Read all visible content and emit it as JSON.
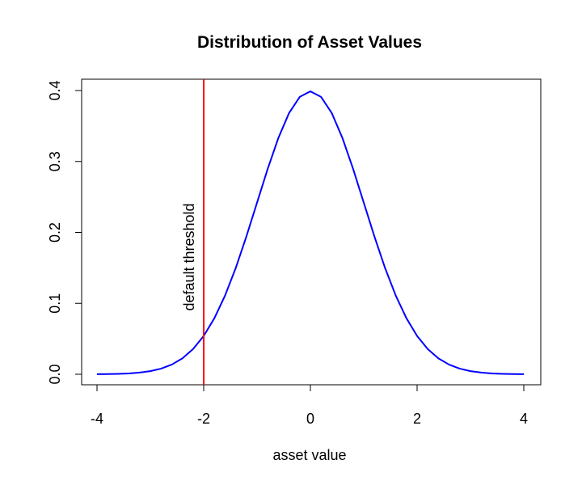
{
  "chart_data": {
    "type": "line",
    "title": "Distribution of Asset Values",
    "xlabel": "asset value",
    "ylabel": "",
    "xlim": [
      -4,
      4
    ],
    "ylim": [
      0,
      0.4
    ],
    "x_ticks": [
      "-4",
      "-2",
      "0",
      "2",
      "4"
    ],
    "x_tick_values": [
      -4,
      -2,
      0,
      2,
      4
    ],
    "y_ticks": [
      "0.0",
      "0.1",
      "0.2",
      "0.3",
      "0.4"
    ],
    "y_tick_values": [
      0,
      0.1,
      0.2,
      0.3,
      0.4
    ],
    "grid": false,
    "series": [
      {
        "color": "#0000ff",
        "x": [
          -4.0,
          -3.8,
          -3.6,
          -3.4,
          -3.2,
          -3.0,
          -2.8,
          -2.6,
          -2.4,
          -2.2,
          -2.0,
          -1.8,
          -1.6,
          -1.4,
          -1.2,
          -1.0,
          -0.8,
          -0.6,
          -0.4,
          -0.2,
          0.0,
          0.2,
          0.4,
          0.6,
          0.8,
          1.0,
          1.2,
          1.4,
          1.6,
          1.8,
          2.0,
          2.2,
          2.4,
          2.6,
          2.8,
          3.0,
          3.2,
          3.4,
          3.6,
          3.8,
          4.0
        ],
        "y": [
          0.0001,
          0.0003,
          0.0006,
          0.0012,
          0.0024,
          0.0044,
          0.0079,
          0.0136,
          0.0224,
          0.0355,
          0.054,
          0.079,
          0.1109,
          0.1497,
          0.1942,
          0.242,
          0.2897,
          0.3332,
          0.3683,
          0.391,
          0.3989,
          0.391,
          0.3683,
          0.3332,
          0.2897,
          0.242,
          0.1942,
          0.1497,
          0.1109,
          0.079,
          0.054,
          0.0355,
          0.0224,
          0.0136,
          0.0079,
          0.0044,
          0.0024,
          0.0012,
          0.0006,
          0.0003,
          0.0001
        ]
      }
    ],
    "threshold": {
      "x": -2,
      "color": "#ff0000",
      "label": "default threshold"
    }
  }
}
